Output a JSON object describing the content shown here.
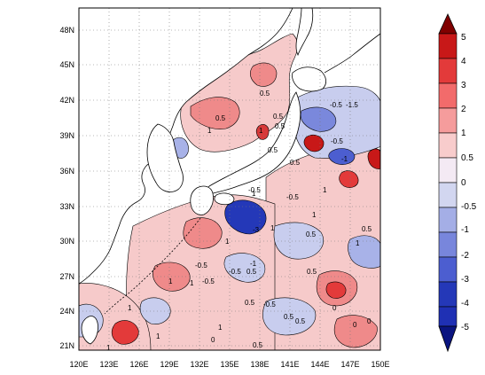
{
  "map": {
    "lon_range": [
      120,
      150
    ],
    "lat_range": [
      20,
      50
    ],
    "x_ticks": [
      "120E",
      "123E",
      "126E",
      "129E",
      "132E",
      "135E",
      "138E",
      "141E",
      "144E",
      "147E",
      "150E"
    ],
    "y_ticks": [
      "21N",
      "24N",
      "27N",
      "30N",
      "33N",
      "36N",
      "39N",
      "42N",
      "45N",
      "48N"
    ],
    "grid_lines": "dotted",
    "land_fill": "#ffffff",
    "coastline_color": "#000000"
  },
  "colorbar": {
    "labels": [
      "5",
      "4",
      "3",
      "2",
      "1",
      "0.5",
      "0",
      "-0.5",
      "-1",
      "-2",
      "-3",
      "-4",
      "-5"
    ],
    "colors": [
      "#800000",
      "#c81818",
      "#f03a3a",
      "#f26b6b",
      "#f59c9c",
      "#f8cccc",
      "#f4eaf4",
      "#d2d6f0",
      "#a4aee6",
      "#7886dc",
      "#4c5ed0",
      "#1f30b4",
      "#0a1480"
    ],
    "extend": "both"
  },
  "contour_labels": [
    "0.5",
    "1",
    "0.5",
    "0.5",
    "1",
    "-0.5",
    "-1.5",
    "-0.5",
    "-1",
    "0.5",
    "1",
    "1",
    "-3",
    "0.5",
    "1",
    "1",
    "-1",
    "-0.5",
    "-0.5",
    "-0.5",
    "1",
    "0.5",
    "0.5",
    "-0.5",
    "1",
    "1",
    "1",
    "0.5",
    "0",
    "1",
    "0.5",
    "0.5",
    "-0.5",
    "0",
    "-0.5",
    "1",
    "0.5",
    "1",
    "0",
    "0",
    "1",
    "0.5",
    "0.5",
    "0.5"
  ]
}
